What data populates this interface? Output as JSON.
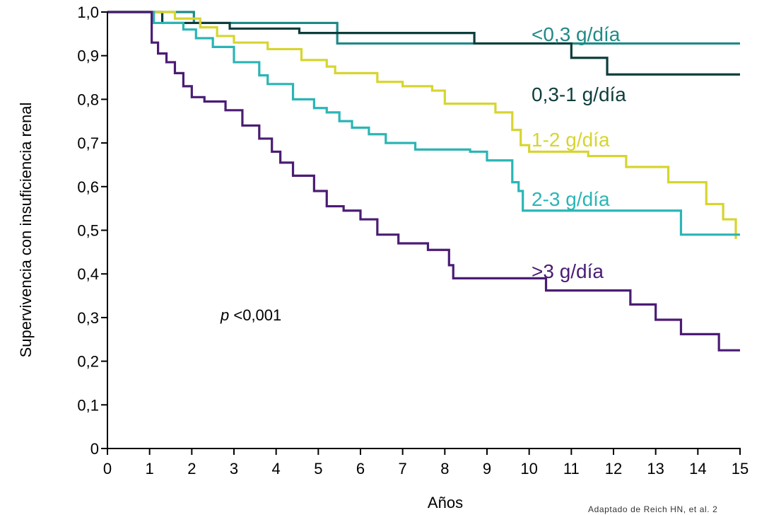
{
  "chart_data": {
    "type": "line",
    "step": true,
    "xlabel": "Años",
    "ylabel": "Supervivencia con insuficiencia renal",
    "xlim": [
      0,
      15
    ],
    "ylim": [
      0,
      1
    ],
    "xticks": [
      "0",
      "1",
      "2",
      "3",
      "4",
      "5",
      "6",
      "7",
      "8",
      "9",
      "10",
      "11",
      "12",
      "13",
      "14",
      "15"
    ],
    "yticks": [
      "0",
      "0,1",
      "0,2",
      "0,3",
      "0,4",
      "0,5",
      "0,6",
      "0,7",
      "0,8",
      "0,9",
      "1,0"
    ],
    "grid": false,
    "annotation": {
      "italic": "p",
      "text": " <0,001"
    },
    "source_note": "Adaptado de Reich HN, et al. 2",
    "series": [
      {
        "name": "<0,3 g/día",
        "color": "#1f8a87",
        "x": [
          0,
          1.0,
          1.1,
          2.0,
          2.05,
          5.4,
          5.45,
          15
        ],
        "y": [
          1.0,
          1.0,
          1.0,
          1.0,
          0.975,
          0.975,
          0.928,
          0.928
        ]
      },
      {
        "name": "0,3-1 g/día",
        "color": "#0d3e3c",
        "x": [
          0,
          1.25,
          1.3,
          2.85,
          2.9,
          4.5,
          4.55,
          8.65,
          8.7,
          10.95,
          11.0,
          11.8,
          11.85,
          15
        ],
        "y": [
          1.0,
          1.0,
          0.975,
          0.975,
          0.962,
          0.962,
          0.952,
          0.952,
          0.928,
          0.928,
          0.895,
          0.895,
          0.857,
          0.857
        ]
      },
      {
        "name": "1-2 g/día",
        "color": "#d6d52f",
        "x": [
          0,
          1.0,
          1.6,
          2.2,
          2.6,
          3.0,
          3.8,
          4.6,
          5.2,
          5.4,
          6.4,
          7.0,
          7.7,
          8.0,
          9.2,
          9.6,
          9.8,
          10.0,
          11.4,
          12.3,
          12.9,
          13.3,
          14.2,
          14.6
        ],
        "y": [
          1.0,
          1.0,
          0.985,
          0.965,
          0.945,
          0.93,
          0.915,
          0.89,
          0.875,
          0.86,
          0.84,
          0.83,
          0.82,
          0.79,
          0.77,
          0.73,
          0.695,
          0.68,
          0.67,
          0.645,
          0.645,
          0.61,
          0.56,
          0.525
        ],
        "end": [
          14.9,
          0.48
        ]
      },
      {
        "name": "2-3 g/día",
        "color": "#2bb5b5",
        "x": [
          0,
          1.0,
          1.1,
          1.8,
          2.1,
          2.5,
          3.0,
          3.6,
          3.8,
          4.4,
          4.9,
          5.2,
          5.5,
          5.8,
          6.2,
          6.6,
          7.3,
          8.0,
          8.6,
          9.0,
          9.6,
          9.75,
          9.85,
          13.5,
          13.6
        ],
        "y": [
          1.0,
          1.0,
          0.975,
          0.96,
          0.94,
          0.92,
          0.885,
          0.855,
          0.835,
          0.8,
          0.78,
          0.77,
          0.75,
          0.735,
          0.72,
          0.7,
          0.685,
          0.685,
          0.68,
          0.66,
          0.61,
          0.59,
          0.545,
          0.545,
          0.49
        ],
        "end": [
          15,
          0.49
        ]
      },
      {
        "name": ">3 g/día",
        "color": "#4b1c74",
        "x": [
          0,
          0.95,
          1.05,
          1.2,
          1.4,
          1.6,
          1.8,
          2.0,
          2.3,
          2.8,
          3.2,
          3.6,
          3.9,
          4.1,
          4.4,
          4.9,
          5.2,
          5.6,
          6.0,
          6.4,
          6.9,
          7.6,
          8.1,
          8.2,
          10.4,
          11.2,
          12.4,
          13.0,
          13.6,
          14.5
        ],
        "y": [
          1.0,
          1.0,
          0.93,
          0.905,
          0.885,
          0.86,
          0.83,
          0.805,
          0.795,
          0.775,
          0.74,
          0.71,
          0.68,
          0.655,
          0.625,
          0.59,
          0.555,
          0.545,
          0.525,
          0.49,
          0.47,
          0.455,
          0.42,
          0.39,
          0.362,
          0.362,
          0.33,
          0.295,
          0.262,
          0.225
        ],
        "end": [
          15,
          0.225
        ]
      }
    ]
  }
}
